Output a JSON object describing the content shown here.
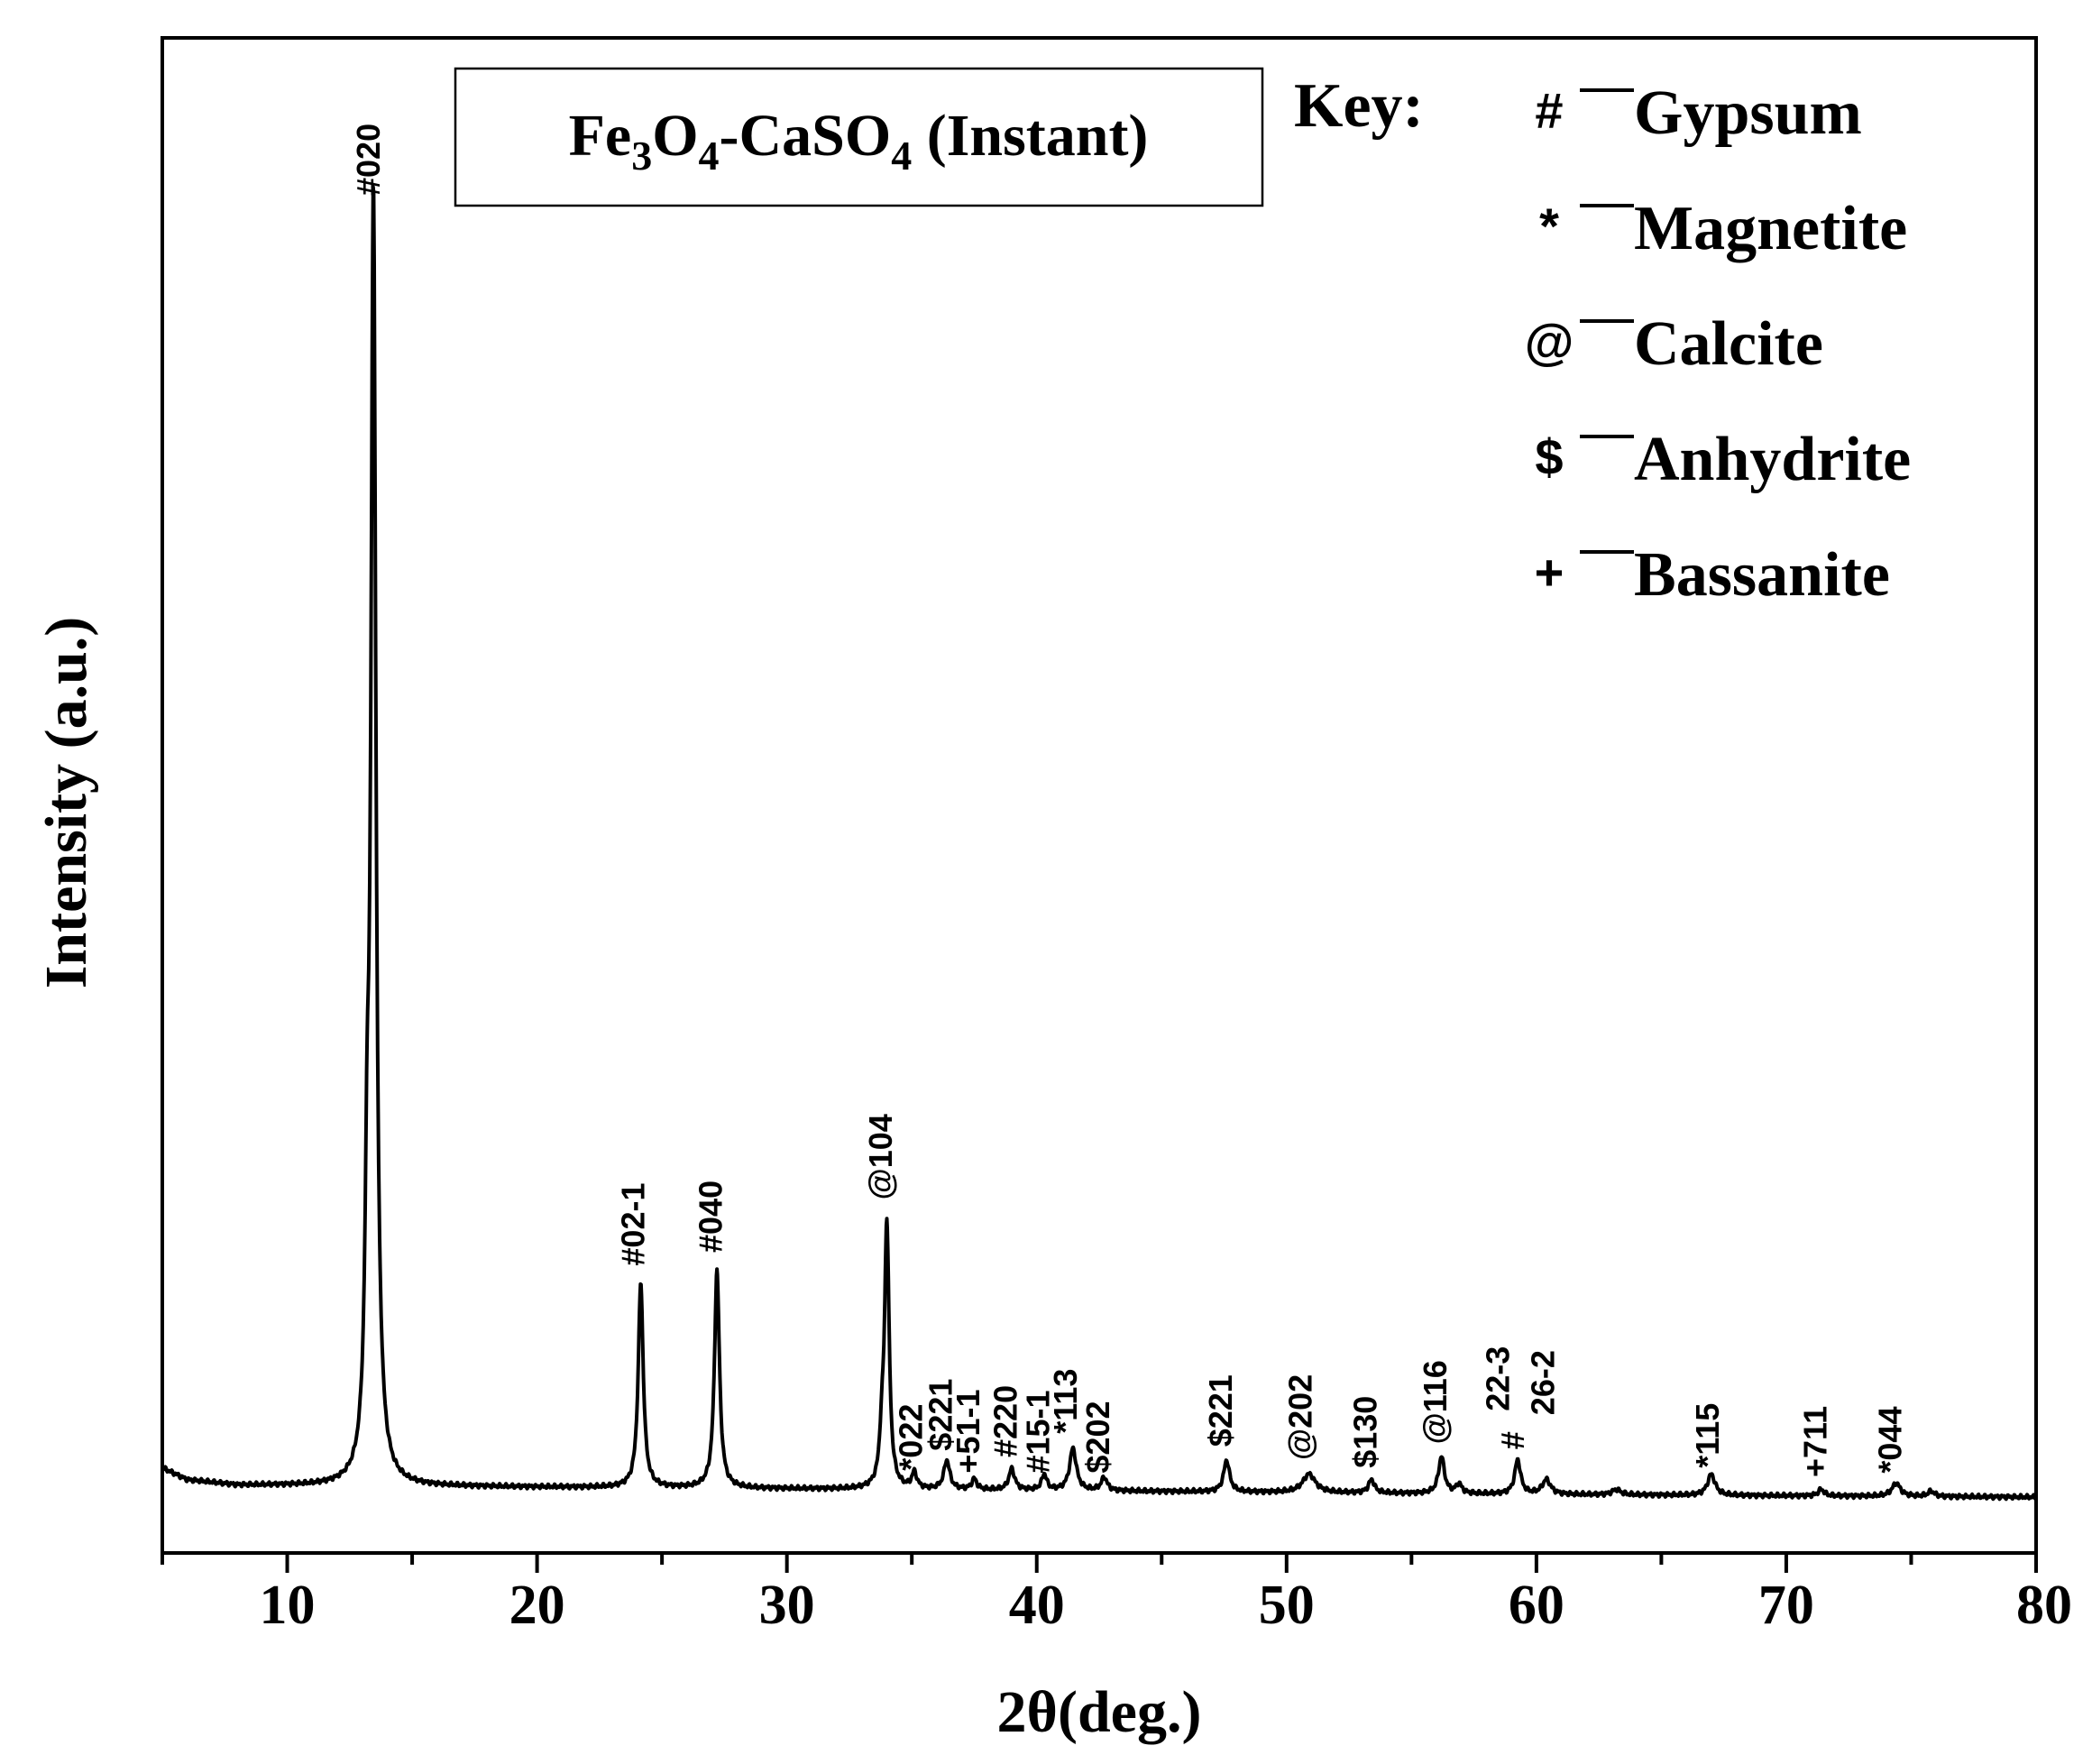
{
  "chart_data": {
    "type": "line",
    "title": "",
    "annotation_box": {
      "main": "Fe",
      "sub1": "3",
      "mid": "O",
      "sub2": "4",
      "tail": "-CaSO",
      "sub3": "4",
      "end": " (Instant)"
    },
    "xlabel": "2θ(deg.)",
    "ylabel": "Intensity (a.u.)",
    "xlim": [
      5,
      80
    ],
    "ylim": [
      0,
      100
    ],
    "xticks": [
      10,
      20,
      30,
      40,
      50,
      60,
      70,
      80
    ],
    "grid": false,
    "y_tick_labels_shown": false,
    "series": [
      {
        "color": "#000000",
        "baseline": [
          [
            5,
            2.2
          ],
          [
            6,
            1.3
          ],
          [
            8,
            0.9
          ],
          [
            20,
            0.75
          ],
          [
            40,
            0.5
          ],
          [
            60,
            0.2
          ],
          [
            80,
            0
          ]
        ],
        "peaks": [
          {
            "x": 13.45,
            "h": 96.5,
            "w": 0.12
          },
          {
            "x": 13.2,
            "h": 16,
            "w": 0.1
          },
          {
            "x": 24.15,
            "h": 15.5,
            "w": 0.12
          },
          {
            "x": 27.2,
            "h": 16.5,
            "w": 0.12
          },
          {
            "x": 34.0,
            "h": 20,
            "w": 0.11
          },
          {
            "x": 33.8,
            "h": 3,
            "w": 0.1
          },
          {
            "x": 35.1,
            "h": 1.2,
            "w": 0.12
          },
          {
            "x": 36.4,
            "h": 2.2,
            "w": 0.14
          },
          {
            "x": 37.5,
            "h": 0.8,
            "w": 0.12
          },
          {
            "x": 39.0,
            "h": 1.6,
            "w": 0.14
          },
          {
            "x": 40.3,
            "h": 1.2,
            "w": 0.12
          },
          {
            "x": 41.45,
            "h": 3.2,
            "w": 0.16
          },
          {
            "x": 42.7,
            "h": 1.0,
            "w": 0.14
          },
          {
            "x": 47.6,
            "h": 2.4,
            "w": 0.14
          },
          {
            "x": 50.9,
            "h": 1.4,
            "w": 0.3
          },
          {
            "x": 53.4,
            "h": 1.0,
            "w": 0.14
          },
          {
            "x": 56.2,
            "h": 2.8,
            "w": 0.14
          },
          {
            "x": 56.9,
            "h": 0.7,
            "w": 0.14
          },
          {
            "x": 59.25,
            "h": 2.6,
            "w": 0.14
          },
          {
            "x": 60.4,
            "h": 1.1,
            "w": 0.2
          },
          {
            "x": 63.2,
            "h": 0.4,
            "w": 0.2
          },
          {
            "x": 67.0,
            "h": 1.6,
            "w": 0.18
          },
          {
            "x": 71.4,
            "h": 0.5,
            "w": 0.14
          },
          {
            "x": 74.4,
            "h": 1.0,
            "w": 0.2
          },
          {
            "x": 75.8,
            "h": 0.4,
            "w": 0.15
          }
        ]
      }
    ],
    "peak_labels": [
      {
        "text": "#020",
        "x": 13.7,
        "y": 98.5
      },
      {
        "text": "#02-1",
        "x": 24.3,
        "y": 17.5
      },
      {
        "text": "#040",
        "x": 27.4,
        "y": 18.5
      },
      {
        "text": "@104",
        "x": 34.2,
        "y": 22.5
      },
      {
        "text": "*022",
        "x": 35.4,
        "y": 2.0
      },
      {
        "text": "$221",
        "x": 36.6,
        "y": 3.5
      },
      {
        "text": "+51-1",
        "x": 37.7,
        "y": 1.8
      },
      {
        "text": "#220",
        "x": 39.2,
        "y": 3.0
      },
      {
        "text": "#15-1",
        "x": 40.5,
        "y": 1.8
      },
      {
        "text": "*113",
        "x": 41.6,
        "y": 4.8
      },
      {
        "text": "$202",
        "x": 42.9,
        "y": 1.8
      },
      {
        "text": "$221",
        "x": 47.8,
        "y": 3.8
      },
      {
        "text": "@202",
        "x": 51.0,
        "y": 2.8
      },
      {
        "text": "$130",
        "x": 53.6,
        "y": 2.2
      },
      {
        "text": "@116",
        "x": 56.4,
        "y": 4.0
      },
      {
        "text": "22-3",
        "x": 58.9,
        "y": 6.5
      },
      {
        "text": "#",
        "x": 59.5,
        "y": 3.6
      },
      {
        "text": "26-2",
        "x": 60.7,
        "y": 6.2
      },
      {
        "text": "*115",
        "x": 67.3,
        "y": 2.2
      },
      {
        "text": "+711",
        "x": 71.6,
        "y": 1.5
      },
      {
        "text": "*044",
        "x": 74.6,
        "y": 1.8
      }
    ],
    "legend": {
      "title": "Key:",
      "entries": [
        {
          "symbol": "#",
          "label": "Gypsum"
        },
        {
          "symbol": "*",
          "label": "Magnetite"
        },
        {
          "symbol": "@",
          "label": "Calcite"
        },
        {
          "symbol": "$",
          "label": "Anhydrite"
        },
        {
          "symbol": "+",
          "label": "Bassanite"
        }
      ]
    }
  }
}
